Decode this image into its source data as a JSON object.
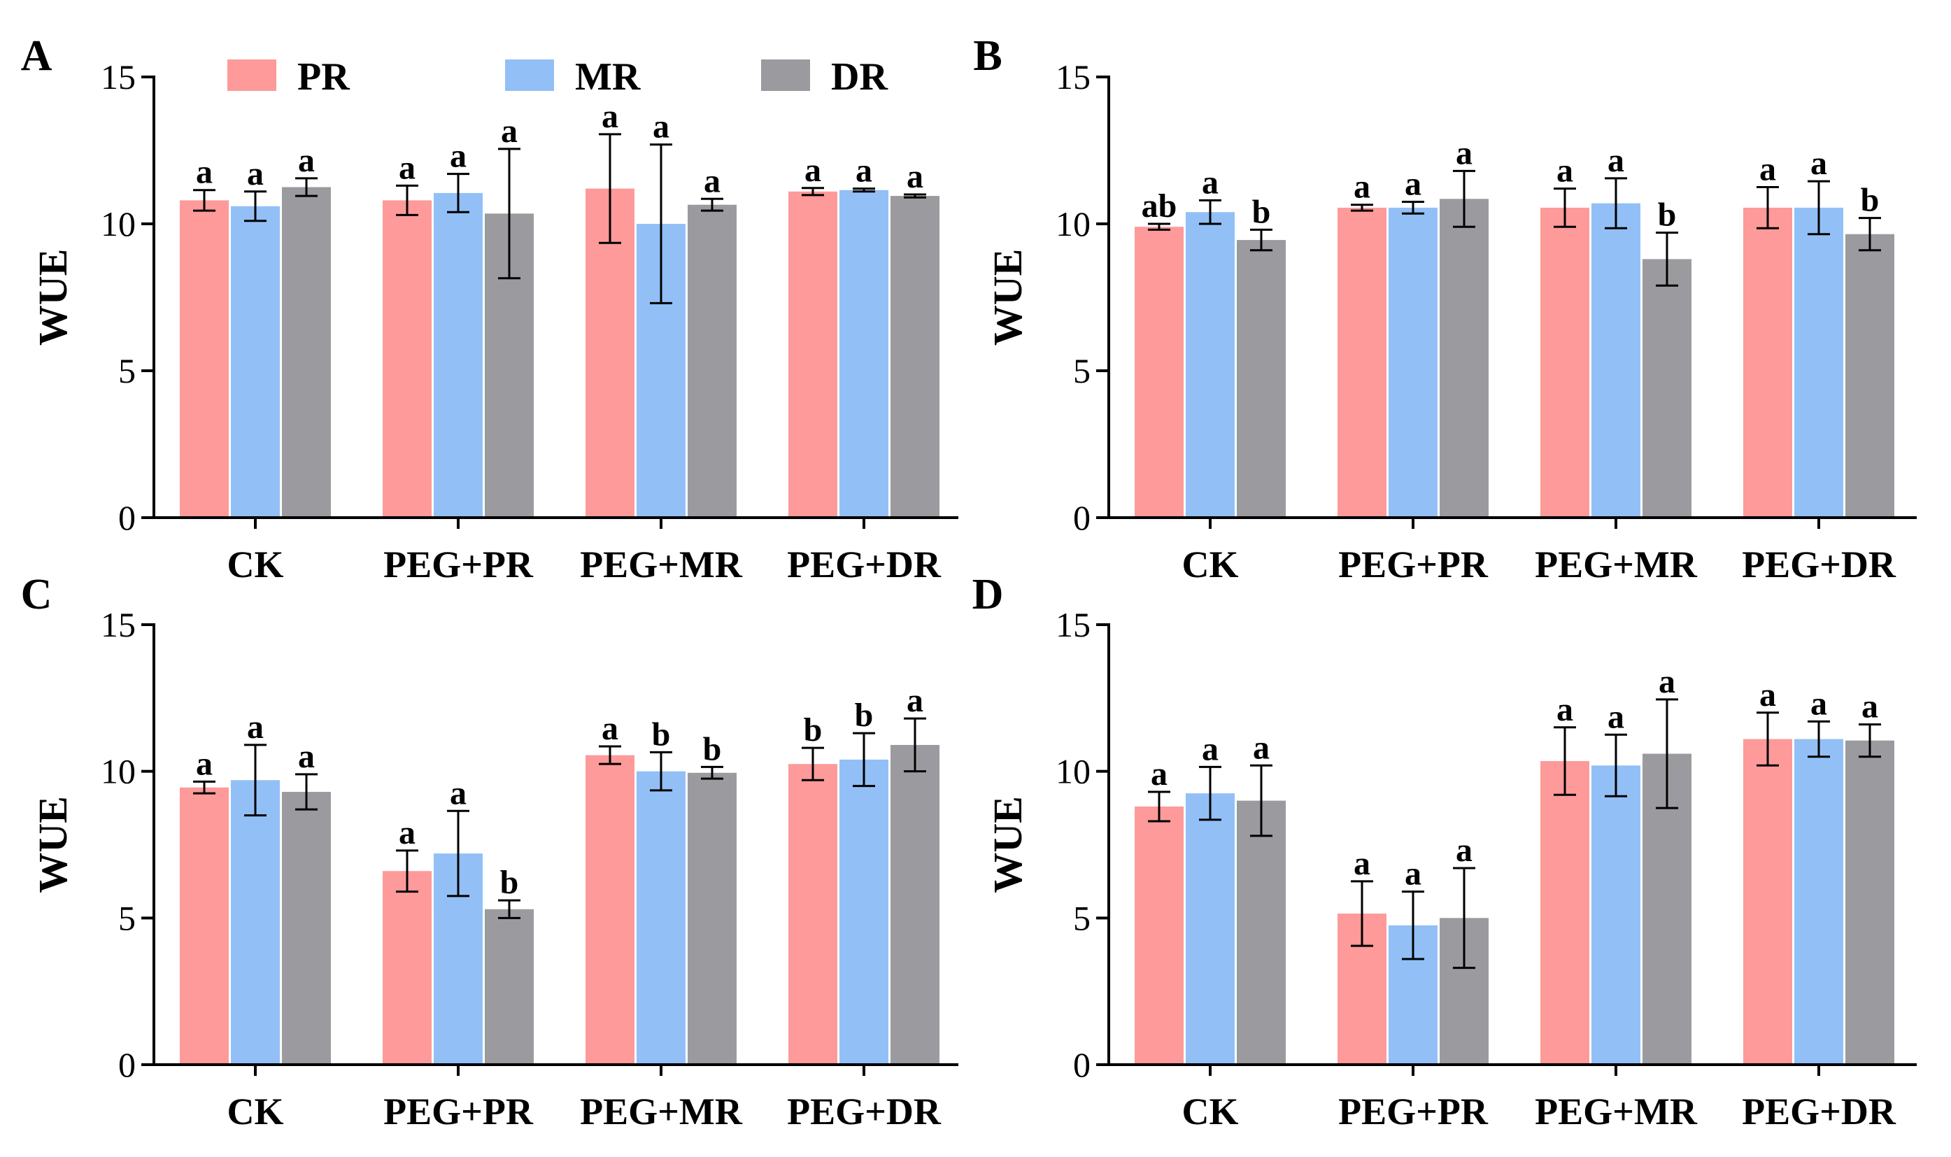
{
  "figure": {
    "series_names": [
      "PR",
      "MR",
      "DR"
    ],
    "colors": [
      "#FE9A9A",
      "#92C0F6",
      "#9B9A9E"
    ]
  },
  "chart_data": [
    {
      "type": "bar",
      "panel": "A",
      "ylabel": "WUE",
      "ylim": [
        0,
        15
      ],
      "yticks": [
        0,
        5,
        10,
        15
      ],
      "categories": [
        "CK",
        "PEG+PR",
        "PEG+MR",
        "PEG+DR"
      ],
      "legend": [
        "PR",
        "MR",
        "DR"
      ],
      "series": [
        {
          "name": "PR",
          "values": [
            10.8,
            10.8,
            11.2,
            11.1
          ],
          "errors": [
            0.35,
            0.5,
            1.85,
            0.12
          ],
          "letters": [
            "a",
            "a",
            "a",
            "a"
          ]
        },
        {
          "name": "MR",
          "values": [
            10.6,
            11.05,
            10.0,
            11.15
          ],
          "errors": [
            0.5,
            0.65,
            2.7,
            0.05
          ],
          "letters": [
            "a",
            "a",
            "a",
            "a"
          ]
        },
        {
          "name": "DR",
          "values": [
            11.25,
            10.35,
            10.65,
            10.95
          ],
          "errors": [
            0.3,
            2.2,
            0.2,
            0.05
          ],
          "letters": [
            "a",
            "a",
            "a",
            "a"
          ]
        }
      ]
    },
    {
      "type": "bar",
      "panel": "B",
      "ylabel": "WUE",
      "ylim": [
        0,
        15
      ],
      "yticks": [
        0,
        5,
        10,
        15
      ],
      "categories": [
        "CK",
        "PEG+PR",
        "PEG+MR",
        "PEG+DR"
      ],
      "series": [
        {
          "name": "PR",
          "values": [
            9.9,
            10.55,
            10.55,
            10.55
          ],
          "errors": [
            0.1,
            0.1,
            0.65,
            0.7
          ],
          "letters": [
            "ab",
            "a",
            "a",
            "a"
          ]
        },
        {
          "name": "MR",
          "values": [
            10.4,
            10.55,
            10.7,
            10.55
          ],
          "errors": [
            0.4,
            0.2,
            0.85,
            0.9
          ],
          "letters": [
            "a",
            "a",
            "a",
            "a"
          ]
        },
        {
          "name": "DR",
          "values": [
            9.45,
            10.85,
            8.8,
            9.65
          ],
          "errors": [
            0.35,
            0.95,
            0.9,
            0.55
          ],
          "letters": [
            "b",
            "a",
            "b",
            "b"
          ]
        }
      ]
    },
    {
      "type": "bar",
      "panel": "C",
      "ylabel": "WUE",
      "ylim": [
        0,
        15
      ],
      "yticks": [
        0,
        5,
        10,
        15
      ],
      "categories": [
        "CK",
        "PEG+PR",
        "PEG+MR",
        "PEG+DR"
      ],
      "series": [
        {
          "name": "PR",
          "values": [
            9.45,
            6.6,
            10.55,
            10.25
          ],
          "errors": [
            0.2,
            0.7,
            0.3,
            0.55
          ],
          "letters": [
            "a",
            "a",
            "a",
            "b"
          ]
        },
        {
          "name": "MR",
          "values": [
            9.7,
            7.2,
            10.0,
            10.4
          ],
          "errors": [
            1.2,
            1.45,
            0.65,
            0.9
          ],
          "letters": [
            "a",
            "a",
            "b",
            "b"
          ]
        },
        {
          "name": "DR",
          "values": [
            9.3,
            5.3,
            9.95,
            10.9
          ],
          "errors": [
            0.6,
            0.3,
            0.2,
            0.9
          ],
          "letters": [
            "a",
            "b",
            "b",
            "a"
          ]
        }
      ]
    },
    {
      "type": "bar",
      "panel": "D",
      "ylabel": "WUE",
      "ylim": [
        0,
        15
      ],
      "yticks": [
        0,
        5,
        10,
        15
      ],
      "categories": [
        "CK",
        "PEG+PR",
        "PEG+MR",
        "PEG+DR"
      ],
      "series": [
        {
          "name": "PR",
          "values": [
            8.8,
            5.15,
            10.35,
            11.1
          ],
          "errors": [
            0.5,
            1.1,
            1.15,
            0.9
          ],
          "letters": [
            "a",
            "a",
            "a",
            "a"
          ]
        },
        {
          "name": "MR",
          "values": [
            9.25,
            4.75,
            10.2,
            11.1
          ],
          "errors": [
            0.9,
            1.15,
            1.05,
            0.6
          ],
          "letters": [
            "a",
            "a",
            "a",
            "a"
          ]
        },
        {
          "name": "DR",
          "values": [
            9.0,
            5.0,
            10.6,
            11.05
          ],
          "errors": [
            1.2,
            1.7,
            1.85,
            0.55
          ],
          "letters": [
            "a",
            "a",
            "a",
            "a"
          ]
        }
      ]
    }
  ]
}
